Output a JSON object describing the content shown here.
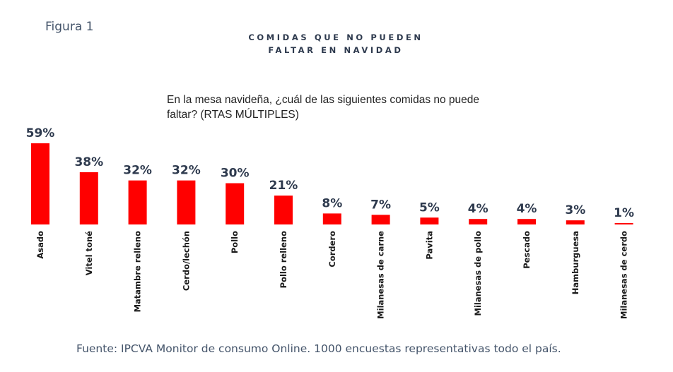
{
  "figure_label": "Figura 1",
  "title_lines": [
    "COMIDAS QUE NO PUEDEN",
    "FALTAR EN NAVIDAD"
  ],
  "question": "En la mesa navideña, ¿cuál de las siguientes comidas no puede faltar? (RTAS MÚLTIPLES)",
  "source": "Fuente: IPCVA Monitor de consumo Online. 1000 encuestas representativas todo el país.",
  "colors": {
    "bar": "#ff0000",
    "value_label": "#2e3a4e",
    "category_label": "#1a1a1a"
  },
  "chart_data": {
    "type": "bar",
    "categories": [
      "Asado",
      "Vitel toné",
      "Matambre relleno",
      "Cerdo/lechón",
      "Pollo",
      "Pollo relleno",
      "Cordero",
      "Milanesas de carne",
      "Pavita",
      "Milanesas de pollo",
      "Pescado",
      "Hamburguesa",
      "Milanesas de cerdo"
    ],
    "values": [
      59,
      38,
      32,
      32,
      30,
      21,
      8,
      7,
      5,
      4,
      4,
      3,
      1
    ],
    "value_labels": [
      "59%",
      "38%",
      "32%",
      "32%",
      "30%",
      "21%",
      "8%",
      "7%",
      "5%",
      "4%",
      "4%",
      "3%",
      "1%"
    ],
    "ylim": [
      0,
      59
    ],
    "grid": false,
    "legend": "none"
  }
}
